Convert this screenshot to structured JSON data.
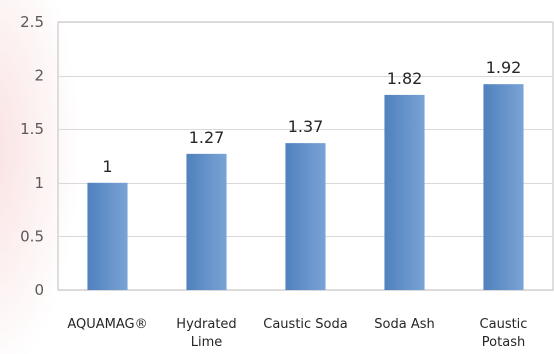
{
  "chart_data": {
    "type": "bar",
    "title": "",
    "xlabel": "",
    "ylabel": "",
    "categories": [
      [
        "AQUAMAG®"
      ],
      [
        "Hydrated",
        "Lime"
      ],
      [
        "Caustic Soda"
      ],
      [
        "Soda Ash"
      ],
      [
        "Caustic",
        "Potash"
      ]
    ],
    "values": [
      1,
      1.27,
      1.37,
      1.82,
      1.92
    ],
    "data_labels": [
      "1",
      "1.27",
      "1.37",
      "1.82",
      "1.92"
    ],
    "yticks": [
      "0",
      "0.5",
      "1",
      "1.5",
      "2",
      "2.5"
    ],
    "ytick_values": [
      0,
      0.5,
      1,
      1.5,
      2,
      2.5
    ],
    "ylim": [
      0,
      2.5
    ],
    "grid": true,
    "legend": "none",
    "colors": {
      "bar_left": "#4f81bd",
      "bar_right": "#7aa3d6",
      "grid": "#d9d9d9",
      "axis": "#bfbfbf"
    }
  }
}
